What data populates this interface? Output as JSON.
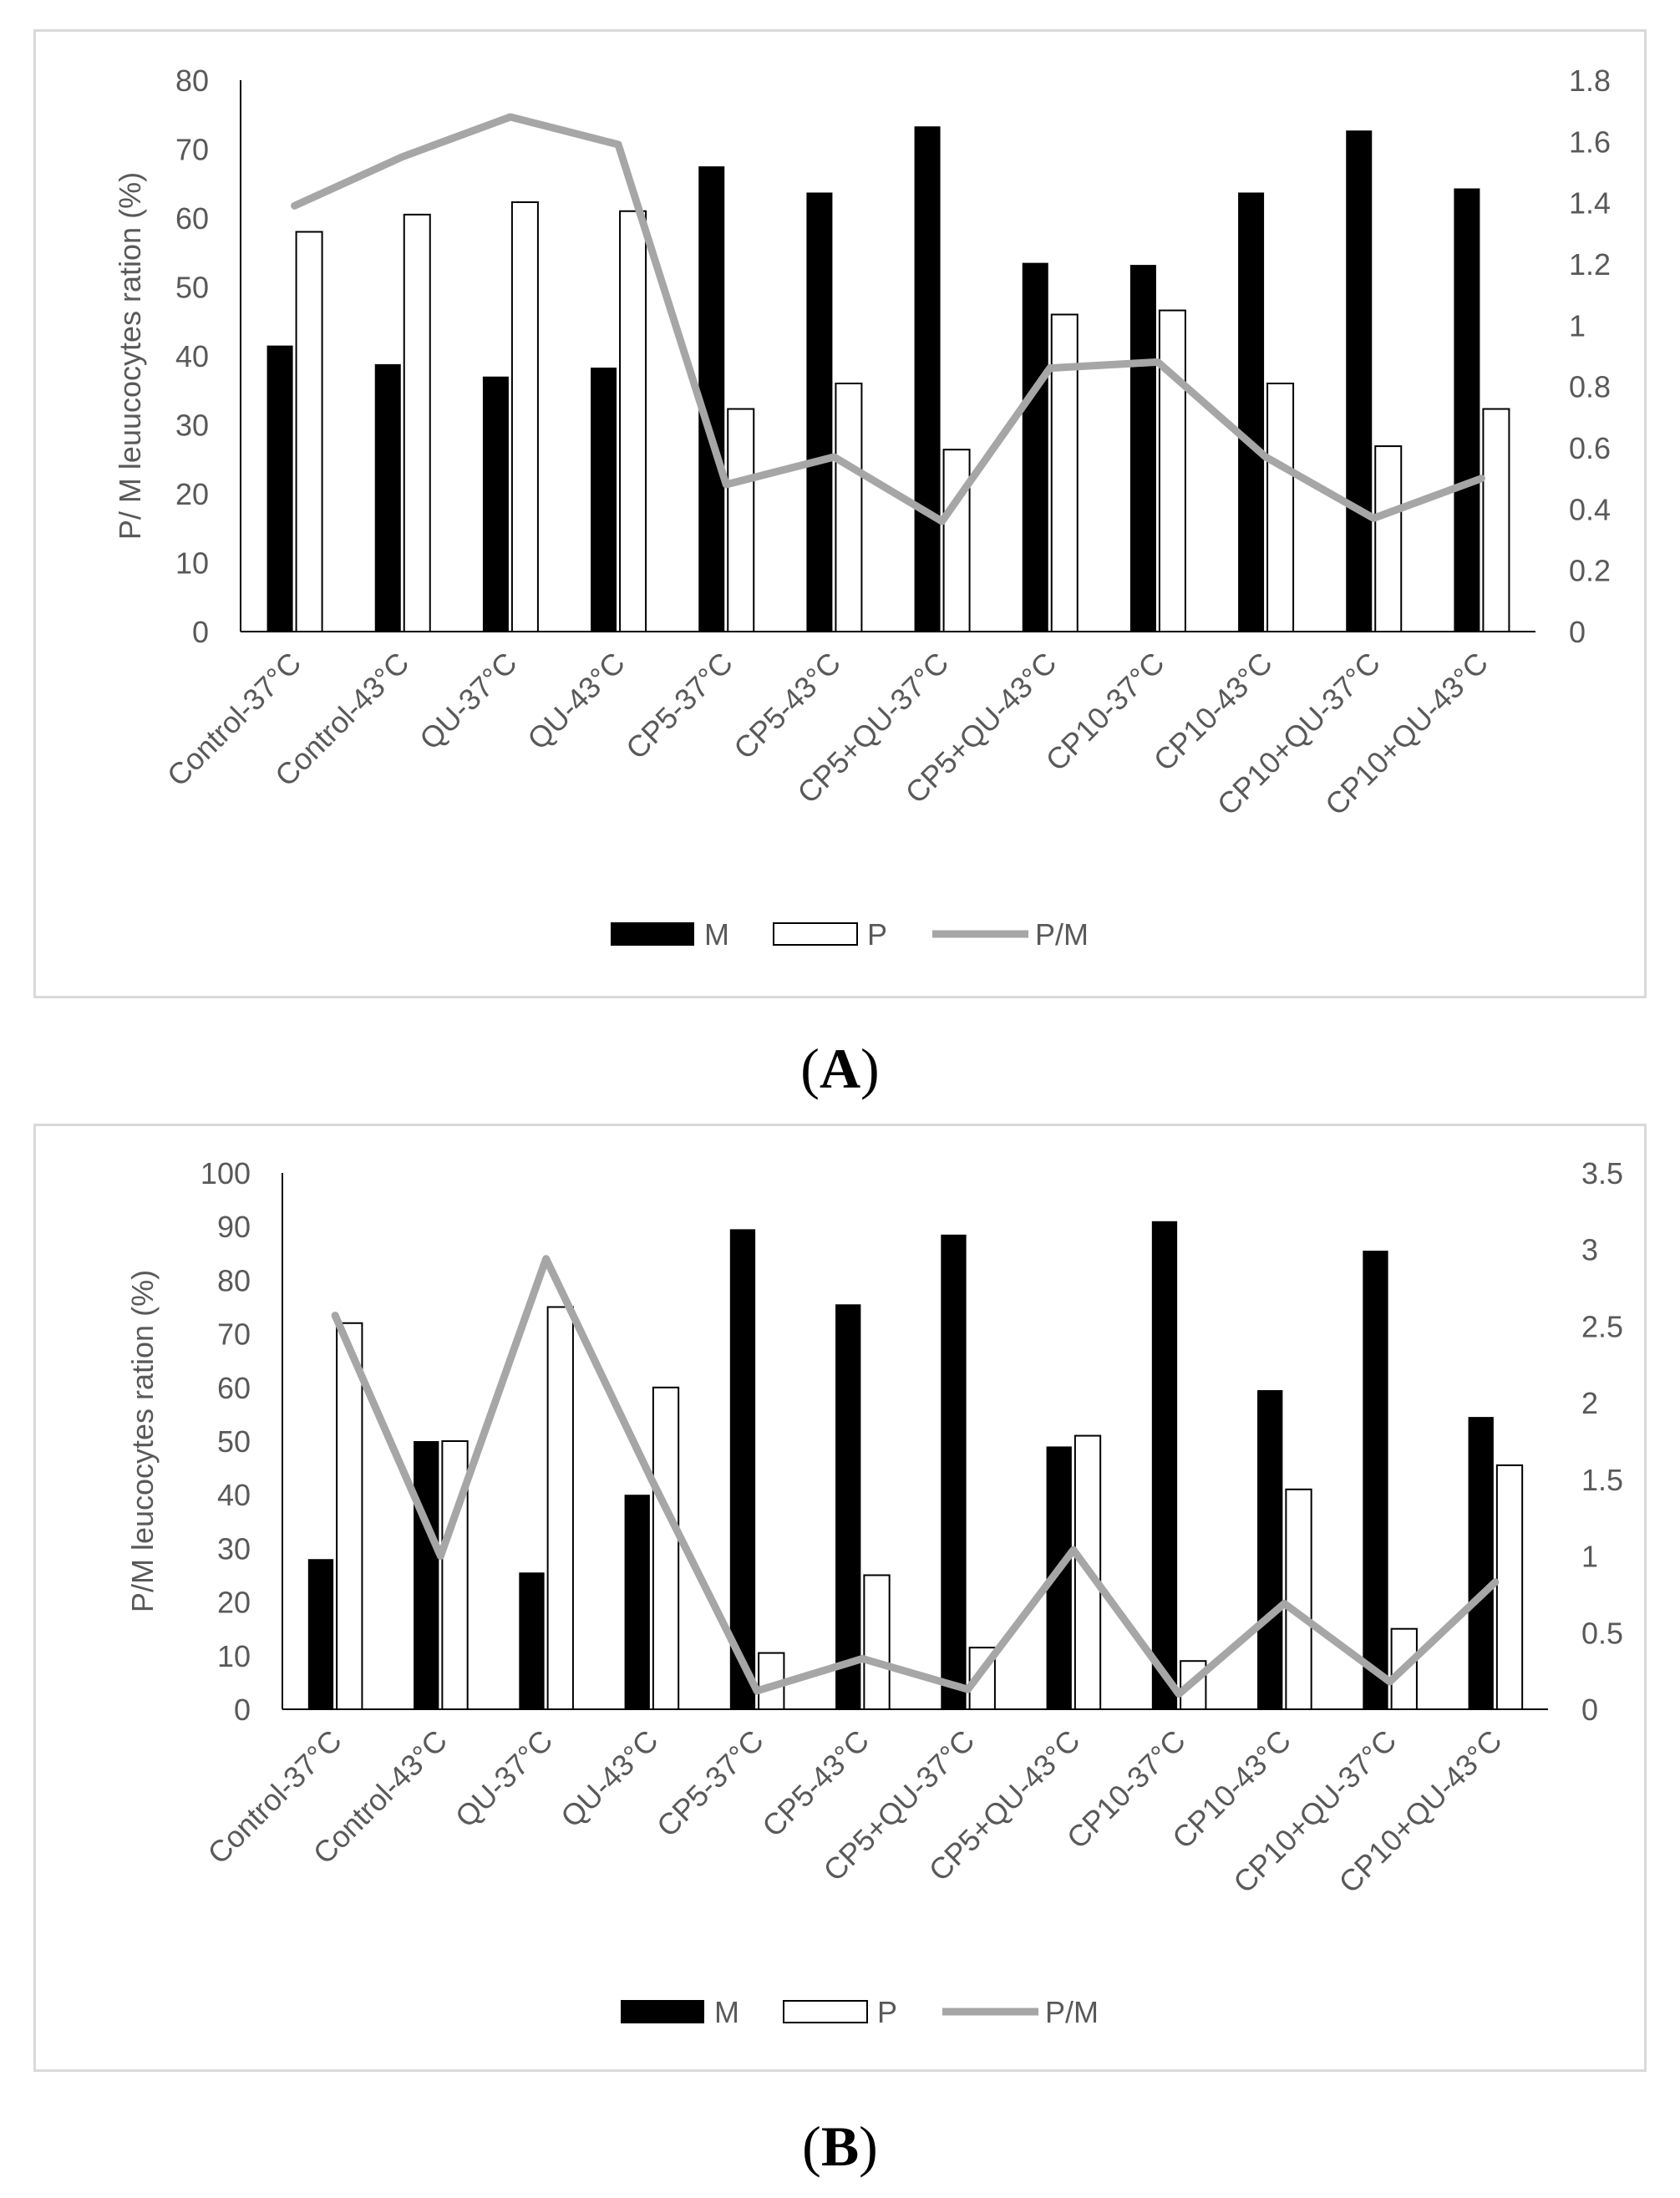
{
  "chart_data": [
    {
      "type": "bar",
      "panel_label": "A",
      "categories": [
        "Control-37°C",
        "Control-43°C",
        "QU-37°C",
        "QU-43°C",
        "CP5-37°C",
        "CP5-43°C",
        "CP5+QU-37°C",
        "CP5+QU-43°C",
        "CP10-37°C",
        "CP10-43°C",
        "CP10+QU-37°C",
        "CP10+QU-43°C"
      ],
      "series": [
        {
          "name": "M",
          "kind": "bar",
          "axis": "left",
          "fill": "#000000",
          "values": [
            41.5,
            38.8,
            37.0,
            38.3,
            67.5,
            63.7,
            73.3,
            53.5,
            53.2,
            63.7,
            72.7,
            64.3
          ]
        },
        {
          "name": "P",
          "kind": "bar",
          "axis": "left",
          "fill": "#ffffff",
          "values": [
            58.0,
            60.5,
            62.3,
            61.0,
            32.3,
            36.0,
            26.4,
            46.0,
            46.6,
            36.0,
            26.9,
            32.3
          ]
        },
        {
          "name": "P/M",
          "kind": "line",
          "axis": "right",
          "color": "#a6a6a6",
          "values": [
            1.39,
            1.55,
            1.68,
            1.59,
            0.48,
            0.57,
            0.36,
            0.86,
            0.88,
            0.57,
            0.37,
            0.5
          ]
        }
      ],
      "ylabel": "P/ M leuucocytes ration (%)",
      "ylim": [
        0,
        80
      ],
      "yticks": [
        "0",
        "10",
        "20",
        "30",
        "40",
        "50",
        "60",
        "70",
        "80"
      ],
      "y2lim": [
        0,
        1.8
      ],
      "y2ticks": [
        "0",
        "0.2",
        "0.4",
        "0.6",
        "0.8",
        "1",
        "1.2",
        "1.4",
        "1.6",
        "1.8"
      ],
      "legend": [
        "M",
        "P",
        "P/M"
      ],
      "legend_position": "bottom"
    },
    {
      "type": "bar",
      "panel_label": "B",
      "categories": [
        "Control-37°C",
        "Control-43°C",
        "QU-37°C",
        "QU-43°C",
        "CP5-37°C",
        "CP5-43°C",
        "CP5+QU-37°C",
        "CP5+QU-43°C",
        "CP10-37°C",
        "CP10-43°C",
        "CP10+QU-37°C",
        "CP10+QU-43°C"
      ],
      "series": [
        {
          "name": "M",
          "kind": "bar",
          "axis": "left",
          "fill": "#000000",
          "values": [
            28.0,
            50.0,
            25.5,
            40.0,
            89.5,
            75.5,
            88.5,
            49.0,
            91.0,
            59.5,
            85.5,
            54.5
          ]
        },
        {
          "name": "P",
          "kind": "bar",
          "axis": "left",
          "fill": "#ffffff",
          "values": [
            72.0,
            50.0,
            75.0,
            60.0,
            10.5,
            25.0,
            11.5,
            51.0,
            9.0,
            41.0,
            15.0,
            45.5
          ]
        },
        {
          "name": "P/M",
          "kind": "line",
          "axis": "right",
          "color": "#a6a6a6",
          "values": [
            2.57,
            1.0,
            2.94,
            1.5,
            0.12,
            0.33,
            0.13,
            1.04,
            0.1,
            0.69,
            0.18,
            0.83
          ]
        }
      ],
      "ylabel": "P/M leucocytes ration (%)",
      "ylim": [
        0,
        100
      ],
      "yticks": [
        "0",
        "10",
        "20",
        "30",
        "40",
        "50",
        "60",
        "70",
        "80",
        "90",
        "100"
      ],
      "y2lim": [
        0,
        3.5
      ],
      "y2ticks": [
        "0",
        "0.5",
        "1",
        "1.5",
        "2",
        "2.5",
        "3",
        "3.5"
      ],
      "legend": [
        "M",
        "P",
        "P/M"
      ],
      "legend_position": "bottom"
    }
  ],
  "captions": {
    "A": "A",
    "B": "B"
  }
}
